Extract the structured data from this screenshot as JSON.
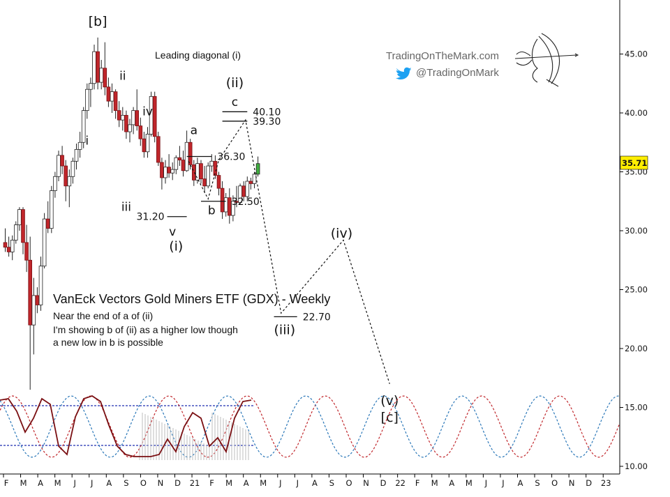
{
  "chart_data": {
    "type": "candlestick",
    "title": "VanEck Vectors Gold Miners ETF (GDX) - Weekly",
    "notes": [
      "Near the end of a of (ii)",
      "I'm showing b of (ii) as a higher low though",
      "a new low in b is possible"
    ],
    "pattern_label": "Leading diagonal (i)",
    "branding": {
      "site": "TradingOnTheMark.com",
      "twitter": "@TradingOnMark",
      "twitter_color": "#1da1f2"
    },
    "last_price": "35.71",
    "y_axis": {
      "range": [
        10,
        49
      ],
      "ticks": [
        "10.00",
        "15.00",
        "20.00",
        "25.00",
        "30.00",
        "35.00",
        "40.00",
        "45.00"
      ]
    },
    "x_axis": {
      "labels": [
        "F",
        "M",
        "A",
        "M",
        "J",
        "J",
        "A",
        "S",
        "O",
        "N",
        "D",
        "21",
        "F",
        "M",
        "A",
        "M",
        "J",
        "J",
        "A",
        "S",
        "O",
        "N",
        "D",
        "22",
        "F",
        "M",
        "A",
        "M",
        "J",
        "J",
        "A",
        "S",
        "O",
        "N",
        "D",
        "23"
      ]
    },
    "candles": [
      {
        "o": 29.0,
        "h": 30.2,
        "l": 28.2,
        "c": 28.6
      },
      {
        "o": 28.6,
        "h": 29.5,
        "l": 27.8,
        "c": 28.2
      },
      {
        "o": 28.2,
        "h": 29.6,
        "l": 27.5,
        "c": 29.2
      },
      {
        "o": 29.2,
        "h": 30.8,
        "l": 28.9,
        "c": 30.5
      },
      {
        "o": 30.5,
        "h": 32.0,
        "l": 30.0,
        "c": 31.8
      },
      {
        "o": 31.8,
        "h": 32.0,
        "l": 28.0,
        "c": 29.0
      },
      {
        "o": 29.0,
        "h": 30.5,
        "l": 26.5,
        "c": 27.5
      },
      {
        "o": 27.5,
        "h": 29.5,
        "l": 16.5,
        "c": 22.0
      },
      {
        "o": 22.0,
        "h": 26.0,
        "l": 19.5,
        "c": 24.5
      },
      {
        "o": 24.5,
        "h": 25.2,
        "l": 23.0,
        "c": 23.7
      },
      {
        "o": 23.7,
        "h": 27.8,
        "l": 23.2,
        "c": 27.0
      },
      {
        "o": 27.0,
        "h": 31.5,
        "l": 26.8,
        "c": 31.0
      },
      {
        "o": 31.0,
        "h": 32.5,
        "l": 29.8,
        "c": 30.2
      },
      {
        "o": 30.2,
        "h": 33.8,
        "l": 29.8,
        "c": 33.4
      },
      {
        "o": 33.4,
        "h": 35.0,
        "l": 32.8,
        "c": 34.6
      },
      {
        "o": 34.6,
        "h": 36.8,
        "l": 34.2,
        "c": 36.4
      },
      {
        "o": 36.4,
        "h": 37.2,
        "l": 34.8,
        "c": 35.5
      },
      {
        "o": 35.5,
        "h": 36.0,
        "l": 32.5,
        "c": 33.8
      },
      {
        "o": 33.8,
        "h": 35.2,
        "l": 32.0,
        "c": 34.6
      },
      {
        "o": 34.6,
        "h": 36.2,
        "l": 34.0,
        "c": 35.9
      },
      {
        "o": 35.9,
        "h": 37.4,
        "l": 35.2,
        "c": 36.9
      },
      {
        "o": 36.9,
        "h": 38.4,
        "l": 36.2,
        "c": 37.5
      },
      {
        "o": 37.5,
        "h": 40.5,
        "l": 37.0,
        "c": 40.2
      },
      {
        "o": 40.2,
        "h": 42.5,
        "l": 39.5,
        "c": 42.0
      },
      {
        "o": 42.0,
        "h": 43.0,
        "l": 40.5,
        "c": 42.5
      },
      {
        "o": 42.5,
        "h": 45.8,
        "l": 42.0,
        "c": 45.2
      },
      {
        "o": 45.2,
        "h": 46.4,
        "l": 42.0,
        "c": 42.6
      },
      {
        "o": 42.6,
        "h": 44.5,
        "l": 42.0,
        "c": 43.8
      },
      {
        "o": 43.8,
        "h": 46.0,
        "l": 41.5,
        "c": 42.2
      },
      {
        "o": 42.2,
        "h": 43.0,
        "l": 40.5,
        "c": 41.0
      },
      {
        "o": 41.0,
        "h": 42.5,
        "l": 40.0,
        "c": 41.8
      },
      {
        "o": 41.8,
        "h": 42.0,
        "l": 39.5,
        "c": 40.2
      },
      {
        "o": 40.2,
        "h": 41.0,
        "l": 38.8,
        "c": 39.4
      },
      {
        "o": 39.4,
        "h": 40.5,
        "l": 38.5,
        "c": 39.8
      },
      {
        "o": 39.8,
        "h": 40.2,
        "l": 37.8,
        "c": 38.4
      },
      {
        "o": 38.4,
        "h": 39.5,
        "l": 37.5,
        "c": 39.0
      },
      {
        "o": 39.0,
        "h": 40.5,
        "l": 38.2,
        "c": 40.2
      },
      {
        "o": 40.2,
        "h": 42.0,
        "l": 38.5,
        "c": 38.9
      },
      {
        "o": 38.9,
        "h": 39.6,
        "l": 37.2,
        "c": 37.8
      },
      {
        "o": 37.8,
        "h": 38.4,
        "l": 36.2,
        "c": 36.7
      },
      {
        "o": 36.7,
        "h": 38.8,
        "l": 36.2,
        "c": 38.2
      },
      {
        "o": 38.2,
        "h": 41.8,
        "l": 38.0,
        "c": 41.4
      },
      {
        "o": 41.4,
        "h": 41.8,
        "l": 37.5,
        "c": 38.0
      },
      {
        "o": 38.0,
        "h": 38.4,
        "l": 35.5,
        "c": 35.8
      },
      {
        "o": 35.8,
        "h": 36.2,
        "l": 33.5,
        "c": 34.5
      },
      {
        "o": 34.5,
        "h": 36.0,
        "l": 34.0,
        "c": 35.4
      },
      {
        "o": 35.4,
        "h": 36.5,
        "l": 34.5,
        "c": 34.9
      },
      {
        "o": 34.9,
        "h": 35.8,
        "l": 34.3,
        "c": 35.2
      },
      {
        "o": 35.2,
        "h": 36.4,
        "l": 34.8,
        "c": 36.2
      },
      {
        "o": 36.2,
        "h": 37.2,
        "l": 35.5,
        "c": 36.0
      },
      {
        "o": 36.0,
        "h": 36.8,
        "l": 34.6,
        "c": 35.1
      },
      {
        "o": 35.1,
        "h": 38.5,
        "l": 35.0,
        "c": 37.5
      },
      {
        "o": 37.5,
        "h": 37.8,
        "l": 35.2,
        "c": 35.6
      },
      {
        "o": 35.6,
        "h": 36.0,
        "l": 33.8,
        "c": 34.3
      },
      {
        "o": 34.3,
        "h": 36.2,
        "l": 34.0,
        "c": 35.7
      },
      {
        "o": 35.7,
        "h": 36.0,
        "l": 34.0,
        "c": 34.4
      },
      {
        "o": 34.4,
        "h": 35.5,
        "l": 33.2,
        "c": 33.8
      },
      {
        "o": 33.8,
        "h": 35.8,
        "l": 33.6,
        "c": 35.5
      },
      {
        "o": 35.5,
        "h": 36.5,
        "l": 35.0,
        "c": 35.9
      },
      {
        "o": 35.9,
        "h": 36.4,
        "l": 34.4,
        "c": 34.7
      },
      {
        "o": 34.7,
        "h": 35.0,
        "l": 33.0,
        "c": 33.6
      },
      {
        "o": 33.6,
        "h": 34.2,
        "l": 31.0,
        "c": 31.6
      },
      {
        "o": 31.6,
        "h": 33.2,
        "l": 31.2,
        "c": 32.8
      },
      {
        "o": 32.8,
        "h": 33.6,
        "l": 30.6,
        "c": 31.3
      },
      {
        "o": 31.3,
        "h": 33.0,
        "l": 30.8,
        "c": 32.5
      },
      {
        "o": 32.5,
        "h": 33.8,
        "l": 32.0,
        "c": 32.4
      },
      {
        "o": 32.4,
        "h": 34.0,
        "l": 32.2,
        "c": 33.8
      },
      {
        "o": 33.8,
        "h": 34.2,
        "l": 32.5,
        "c": 32.9
      },
      {
        "o": 32.9,
        "h": 34.6,
        "l": 32.5,
        "c": 34.2
      },
      {
        "o": 34.2,
        "h": 34.5,
        "l": 33.5,
        "c": 34.0
      },
      {
        "o": 34.0,
        "h": 35.0,
        "l": 33.6,
        "c": 34.8
      },
      {
        "o": 34.8,
        "h": 36.3,
        "l": 34.6,
        "c": 35.7
      }
    ],
    "colors": {
      "up_body": "#ffffff",
      "down_body": "#c0262b",
      "last_up_body": "#3fae3f",
      "last_price_box": "#ffee00"
    },
    "annotations": [
      {
        "text": "[b]",
        "x": 26,
        "y": 47.4
      },
      {
        "text": "i",
        "x": 23,
        "y": 37.3
      },
      {
        "text": "ii",
        "x": 33,
        "y": 42.8
      },
      {
        "text": "iii",
        "x": 34,
        "y": 31.7
      },
      {
        "text": "iv",
        "x": 40,
        "y": 39.8
      },
      {
        "text": "v",
        "x": 47,
        "y": 29.6
      },
      {
        "text": "(i)",
        "x": 48,
        "y": 28.3
      },
      {
        "text": "a",
        "x": 53,
        "y": 38.2
      },
      {
        "text": "b",
        "x": 58,
        "y": 31.4
      },
      {
        "text": "c",
        "x": 64.5,
        "y": 40.6
      },
      {
        "text": "(ii)",
        "x": 64.5,
        "y": 42.2
      },
      {
        "text": "(iii)",
        "x": 78.5,
        "y": 21.2
      },
      {
        "text": "(iv)",
        "x": 94.5,
        "y": 29.4
      },
      {
        "text": "(v)",
        "x": 108,
        "y": 15.2
      },
      {
        "text": "[c]",
        "x": 108,
        "y": 13.8
      }
    ],
    "levels": [
      {
        "label": "31.20",
        "value": 31.2,
        "x1": 45.5,
        "x2": 51
      },
      {
        "label": "36.30",
        "value": 36.3,
        "x1": 51,
        "x2": 58
      },
      {
        "label": "32.50",
        "value": 32.5,
        "x1": 55,
        "x2": 62
      },
      {
        "label": "40.10",
        "value": 40.1,
        "x1": 61,
        "x2": 68
      },
      {
        "label": "39.30",
        "value": 39.3,
        "x1": 61,
        "x2": 68
      },
      {
        "label": "22.70",
        "value": 22.7,
        "x1": 75.5,
        "x2": 82
      }
    ],
    "projection": [
      {
        "x": 51.5,
        "y": 35.9
      },
      {
        "x": 57,
        "y": 32.7
      },
      {
        "x": 60,
        "y": 36.0
      },
      {
        "x": 67.5,
        "y": 39.4
      },
      {
        "x": 77.5,
        "y": 23.0
      },
      {
        "x": 95,
        "y": 29.2
      },
      {
        "x": 108,
        "y": 17.0
      }
    ]
  }
}
